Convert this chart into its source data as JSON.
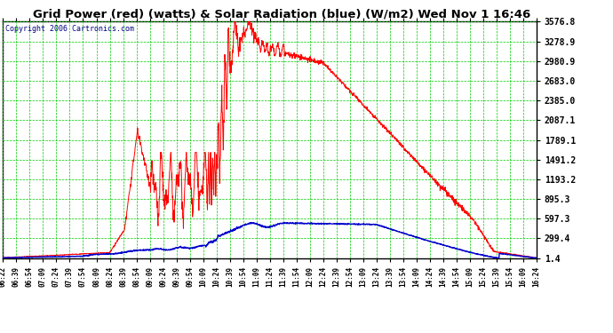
{
  "title": "Grid Power (red) (watts) & Solar Radiation (blue) (W/m2) Wed Nov 1 16:46",
  "copyright": "Copyright 2006 Cartronics.com",
  "bg_color": "#ffffff",
  "plot_bg_color": "#ffffff",
  "grid_color": "#00cc00",
  "red_color": "#ff0000",
  "blue_color": "#0000cc",
  "yticks": [
    1.4,
    299.4,
    597.3,
    895.3,
    1193.2,
    1491.2,
    1789.1,
    2087.1,
    2385.0,
    2683.0,
    2980.9,
    3278.9,
    3576.8
  ],
  "ymin": 1.4,
  "ymax": 3576.8,
  "xtick_labels": [
    "06:22",
    "06:39",
    "06:54",
    "07:09",
    "07:24",
    "07:39",
    "07:54",
    "08:09",
    "08:24",
    "08:39",
    "08:54",
    "09:09",
    "09:24",
    "09:39",
    "09:54",
    "10:09",
    "10:24",
    "10:39",
    "10:54",
    "11:09",
    "11:24",
    "11:39",
    "11:54",
    "12:09",
    "12:24",
    "12:39",
    "12:54",
    "13:09",
    "13:24",
    "13:39",
    "13:54",
    "14:09",
    "14:24",
    "14:39",
    "14:54",
    "15:09",
    "15:24",
    "15:39",
    "15:54",
    "16:09",
    "16:24"
  ]
}
